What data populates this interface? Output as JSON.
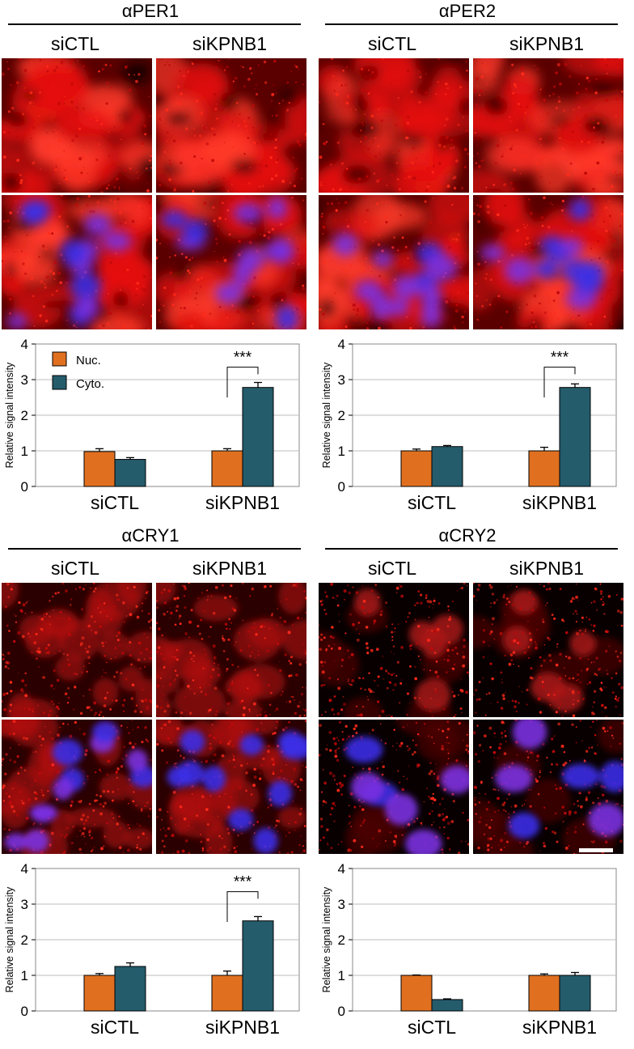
{
  "colors": {
    "nuc": "#E07020",
    "cyto": "#245C6C",
    "grid": "#bcbcbc",
    "axis": "#000000",
    "red_stain": "#e01010",
    "blue_stain": "#3a2ee0"
  },
  "panels": [
    {
      "title": "αPER1",
      "conditions": [
        "siCTL",
        "siKPNB1"
      ],
      "micrographs": {
        "top_row": "red-only",
        "bottom_row": "merge",
        "stain_style": "diffuse"
      },
      "chart_data": {
        "type": "bar",
        "categories": [
          "siCTL",
          "siKPNB1"
        ],
        "series": [
          {
            "name": "Nuc.",
            "values": [
              0.98,
              1.0
            ],
            "errors": [
              0.08,
              0.06
            ]
          },
          {
            "name": "Cyto.",
            "values": [
              0.76,
              2.78
            ],
            "errors": [
              0.05,
              0.14
            ]
          }
        ],
        "ylabel": "Relative signal intensity",
        "ylim": [
          0,
          4
        ],
        "yticks": [
          "0",
          "1",
          "2",
          "3",
          "4"
        ],
        "grid": true,
        "legend": "top-left",
        "significance": {
          "category": "siKPNB1",
          "label": "***"
        }
      }
    },
    {
      "title": "αPER2",
      "conditions": [
        "siCTL",
        "siKPNB1"
      ],
      "micrographs": {
        "top_row": "red-only",
        "bottom_row": "merge",
        "stain_style": "diffuse"
      },
      "chart_data": {
        "type": "bar",
        "categories": [
          "siCTL",
          "siKPNB1"
        ],
        "series": [
          {
            "name": "Nuc.",
            "values": [
              1.0,
              1.0
            ],
            "errors": [
              0.05,
              0.1
            ]
          },
          {
            "name": "Cyto.",
            "values": [
              1.12,
              2.78
            ],
            "errors": [
              0.03,
              0.1
            ]
          }
        ],
        "ylabel": "Relative signal intensity",
        "ylim": [
          0,
          4
        ],
        "yticks": [
          "0",
          "1",
          "2",
          "3",
          "4"
        ],
        "grid": true,
        "significance": {
          "category": "siKPNB1",
          "label": "***"
        }
      }
    },
    {
      "title": "αCRY1",
      "conditions": [
        "siCTL",
        "siKPNB1"
      ],
      "micrographs": {
        "top_row": "red-only",
        "bottom_row": "merge",
        "stain_style": "speckled"
      },
      "chart_data": {
        "type": "bar",
        "categories": [
          "siCTL",
          "siKPNB1"
        ],
        "series": [
          {
            "name": "Nuc.",
            "values": [
              1.0,
              1.0
            ],
            "errors": [
              0.05,
              0.12
            ]
          },
          {
            "name": "Cyto.",
            "values": [
              1.25,
              2.53
            ],
            "errors": [
              0.1,
              0.12
            ]
          }
        ],
        "ylabel": "Relative signal intensity",
        "ylim": [
          0,
          4
        ],
        "yticks": [
          "0",
          "1",
          "2",
          "3",
          "4"
        ],
        "grid": true,
        "significance": {
          "category": "siKPNB1",
          "label": "***"
        }
      }
    },
    {
      "title": "αCRY2",
      "conditions": [
        "siCTL",
        "siKPNB1"
      ],
      "micrographs": {
        "top_row": "red-only",
        "bottom_row": "merge",
        "stain_style": "nuclear",
        "scale_bar": true
      },
      "chart_data": {
        "type": "bar",
        "categories": [
          "siCTL",
          "siKPNB1"
        ],
        "series": [
          {
            "name": "Nuc.",
            "values": [
              1.0,
              1.0
            ],
            "errors": [
              0.01,
              0.04
            ]
          },
          {
            "name": "Cyto.",
            "values": [
              0.32,
              1.0
            ],
            "errors": [
              0.02,
              0.08
            ]
          }
        ],
        "ylabel": "Relative signal intensity",
        "ylim": [
          0,
          4
        ],
        "yticks": [
          "0",
          "1",
          "2",
          "3",
          "4"
        ],
        "grid": true
      }
    }
  ]
}
